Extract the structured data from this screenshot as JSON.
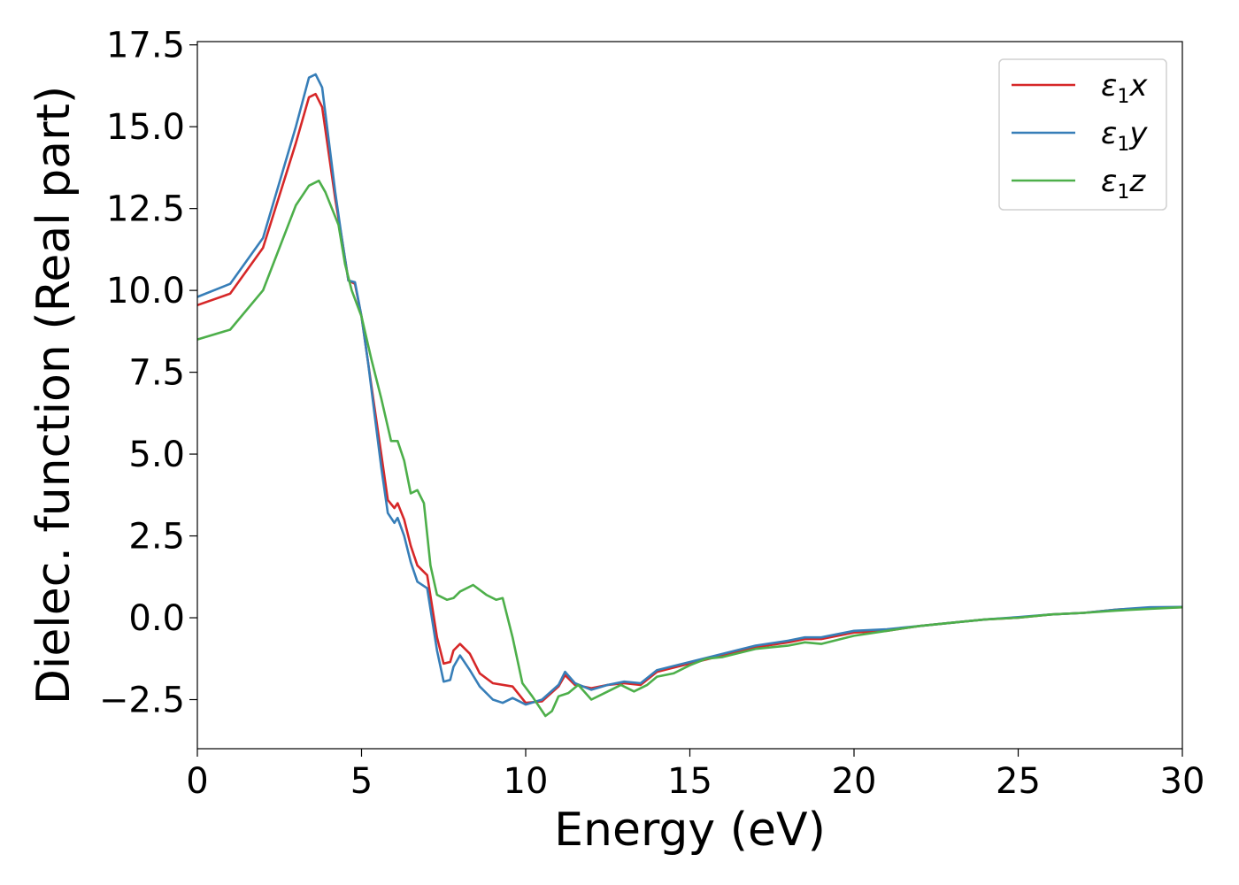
{
  "chart_data": {
    "type": "line",
    "xlabel": "Energy (eV)",
    "ylabel": "Dielec. function (Real part)",
    "xlim": [
      0,
      30
    ],
    "ylim": [
      -4.0,
      17.6
    ],
    "xticks": [
      0,
      5,
      10,
      15,
      20,
      25,
      30
    ],
    "xtick_labels": [
      "0",
      "5",
      "10",
      "15",
      "20",
      "25",
      "30"
    ],
    "yticks": [
      -2.5,
      0.0,
      2.5,
      5.0,
      7.5,
      10.0,
      12.5,
      15.0,
      17.5
    ],
    "ytick_labels": [
      "−2.5",
      "0.0",
      "2.5",
      "5.0",
      "7.5",
      "10.0",
      "12.5",
      "15.0",
      "17.5"
    ],
    "grid": false,
    "legend_position": "top-right",
    "series": [
      {
        "name": "ε₁x",
        "legend_main": "ε",
        "legend_sub": "1",
        "legend_tail": "x",
        "color": "#d62728",
        "points": [
          [
            0,
            9.55
          ],
          [
            1,
            9.9
          ],
          [
            2,
            11.3
          ],
          [
            3,
            14.5
          ],
          [
            3.4,
            15.9
          ],
          [
            3.6,
            16.0
          ],
          [
            3.8,
            15.6
          ],
          [
            4.0,
            14.2
          ],
          [
            4.2,
            12.8
          ],
          [
            4.4,
            11.6
          ],
          [
            4.6,
            10.3
          ],
          [
            4.8,
            10.2
          ],
          [
            5.0,
            9.2
          ],
          [
            5.2,
            7.8
          ],
          [
            5.4,
            6.4
          ],
          [
            5.6,
            5.0
          ],
          [
            5.8,
            3.6
          ],
          [
            6.0,
            3.35
          ],
          [
            6.1,
            3.5
          ],
          [
            6.3,
            3.0
          ],
          [
            6.5,
            2.2
          ],
          [
            6.7,
            1.6
          ],
          [
            7.0,
            1.3
          ],
          [
            7.3,
            -0.6
          ],
          [
            7.5,
            -1.4
          ],
          [
            7.7,
            -1.35
          ],
          [
            7.8,
            -1.0
          ],
          [
            8.0,
            -0.8
          ],
          [
            8.3,
            -1.1
          ],
          [
            8.6,
            -1.7
          ],
          [
            9.0,
            -2.0
          ],
          [
            9.6,
            -2.1
          ],
          [
            10.0,
            -2.6
          ],
          [
            10.5,
            -2.55
          ],
          [
            11.0,
            -2.1
          ],
          [
            11.2,
            -1.75
          ],
          [
            11.5,
            -2.05
          ],
          [
            12.0,
            -2.15
          ],
          [
            12.5,
            -2.05
          ],
          [
            13.0,
            -2.0
          ],
          [
            13.5,
            -2.05
          ],
          [
            14.0,
            -1.65
          ],
          [
            15.0,
            -1.4
          ],
          [
            16.0,
            -1.15
          ],
          [
            17.0,
            -0.9
          ],
          [
            18.0,
            -0.75
          ],
          [
            18.5,
            -0.65
          ],
          [
            19.0,
            -0.65
          ],
          [
            20.0,
            -0.45
          ],
          [
            21.0,
            -0.4
          ],
          [
            22.0,
            -0.25
          ],
          [
            23.0,
            -0.15
          ],
          [
            24.0,
            -0.05
          ],
          [
            25.0,
            0.0
          ],
          [
            26.0,
            0.1
          ],
          [
            27.0,
            0.15
          ],
          [
            28.0,
            0.25
          ],
          [
            29.0,
            0.3
          ],
          [
            30.0,
            0.32
          ]
        ]
      },
      {
        "name": "ε₁y",
        "legend_main": "ε",
        "legend_sub": "1",
        "legend_tail": "y",
        "color": "#377eb8",
        "points": [
          [
            0,
            9.8
          ],
          [
            1,
            10.2
          ],
          [
            2,
            11.6
          ],
          [
            3,
            15.0
          ],
          [
            3.4,
            16.5
          ],
          [
            3.6,
            16.6
          ],
          [
            3.8,
            16.2
          ],
          [
            4.0,
            14.6
          ],
          [
            4.2,
            13.0
          ],
          [
            4.4,
            11.6
          ],
          [
            4.6,
            10.3
          ],
          [
            4.8,
            10.25
          ],
          [
            5.0,
            9.2
          ],
          [
            5.2,
            7.8
          ],
          [
            5.4,
            6.2
          ],
          [
            5.6,
            4.6
          ],
          [
            5.8,
            3.2
          ],
          [
            6.0,
            2.9
          ],
          [
            6.1,
            3.05
          ],
          [
            6.3,
            2.5
          ],
          [
            6.5,
            1.7
          ],
          [
            6.7,
            1.1
          ],
          [
            7.0,
            0.9
          ],
          [
            7.3,
            -1.0
          ],
          [
            7.5,
            -1.95
          ],
          [
            7.7,
            -1.9
          ],
          [
            7.8,
            -1.5
          ],
          [
            8.0,
            -1.15
          ],
          [
            8.3,
            -1.6
          ],
          [
            8.6,
            -2.1
          ],
          [
            9.0,
            -2.5
          ],
          [
            9.3,
            -2.6
          ],
          [
            9.6,
            -2.45
          ],
          [
            10.0,
            -2.65
          ],
          [
            10.5,
            -2.5
          ],
          [
            11.0,
            -2.05
          ],
          [
            11.2,
            -1.65
          ],
          [
            11.5,
            -2.0
          ],
          [
            12.0,
            -2.2
          ],
          [
            12.5,
            -2.05
          ],
          [
            13.0,
            -1.95
          ],
          [
            13.5,
            -2.0
          ],
          [
            14.0,
            -1.6
          ],
          [
            15.0,
            -1.35
          ],
          [
            16.0,
            -1.1
          ],
          [
            17.0,
            -0.85
          ],
          [
            18.0,
            -0.7
          ],
          [
            18.5,
            -0.6
          ],
          [
            19.0,
            -0.6
          ],
          [
            20.0,
            -0.4
          ],
          [
            21.0,
            -0.35
          ],
          [
            22.0,
            -0.25
          ],
          [
            23.0,
            -0.15
          ],
          [
            24.0,
            -0.05
          ],
          [
            25.0,
            0.02
          ],
          [
            26.0,
            0.1
          ],
          [
            27.0,
            0.15
          ],
          [
            28.0,
            0.25
          ],
          [
            29.0,
            0.32
          ],
          [
            30.0,
            0.33
          ]
        ]
      },
      {
        "name": "ε₁z",
        "legend_main": "ε",
        "legend_sub": "1",
        "legend_tail": "z",
        "color": "#4daf4a",
        "points": [
          [
            0,
            8.5
          ],
          [
            1,
            8.8
          ],
          [
            2,
            10.0
          ],
          [
            3,
            12.6
          ],
          [
            3.4,
            13.2
          ],
          [
            3.7,
            13.35
          ],
          [
            3.9,
            13.0
          ],
          [
            4.1,
            12.5
          ],
          [
            4.3,
            12.0
          ],
          [
            4.5,
            10.8
          ],
          [
            4.7,
            10.0
          ],
          [
            5.0,
            9.2
          ],
          [
            5.3,
            7.9
          ],
          [
            5.6,
            6.7
          ],
          [
            5.9,
            5.4
          ],
          [
            6.1,
            5.4
          ],
          [
            6.3,
            4.8
          ],
          [
            6.5,
            3.8
          ],
          [
            6.7,
            3.9
          ],
          [
            6.9,
            3.5
          ],
          [
            7.1,
            1.6
          ],
          [
            7.3,
            0.7
          ],
          [
            7.6,
            0.55
          ],
          [
            7.8,
            0.6
          ],
          [
            8.0,
            0.8
          ],
          [
            8.4,
            1.0
          ],
          [
            8.8,
            0.7
          ],
          [
            9.1,
            0.55
          ],
          [
            9.3,
            0.6
          ],
          [
            9.6,
            -0.6
          ],
          [
            9.9,
            -2.0
          ],
          [
            10.2,
            -2.4
          ],
          [
            10.6,
            -3.0
          ],
          [
            10.8,
            -2.85
          ],
          [
            11.0,
            -2.4
          ],
          [
            11.3,
            -2.3
          ],
          [
            11.6,
            -2.05
          ],
          [
            12.0,
            -2.5
          ],
          [
            12.5,
            -2.25
          ],
          [
            12.9,
            -2.05
          ],
          [
            13.3,
            -2.25
          ],
          [
            13.7,
            -2.05
          ],
          [
            14.0,
            -1.8
          ],
          [
            14.5,
            -1.7
          ],
          [
            15.0,
            -1.45
          ],
          [
            15.5,
            -1.25
          ],
          [
            16.0,
            -1.2
          ],
          [
            17.0,
            -0.95
          ],
          [
            18.0,
            -0.85
          ],
          [
            18.5,
            -0.75
          ],
          [
            19.0,
            -0.8
          ],
          [
            20.0,
            -0.55
          ],
          [
            21.0,
            -0.4
          ],
          [
            22.0,
            -0.25
          ],
          [
            23.0,
            -0.15
          ],
          [
            24.0,
            -0.05
          ],
          [
            25.0,
            0.0
          ],
          [
            26.0,
            0.1
          ],
          [
            27.0,
            0.15
          ],
          [
            28.0,
            0.22
          ],
          [
            29.0,
            0.27
          ],
          [
            30.0,
            0.32
          ]
        ]
      }
    ]
  }
}
